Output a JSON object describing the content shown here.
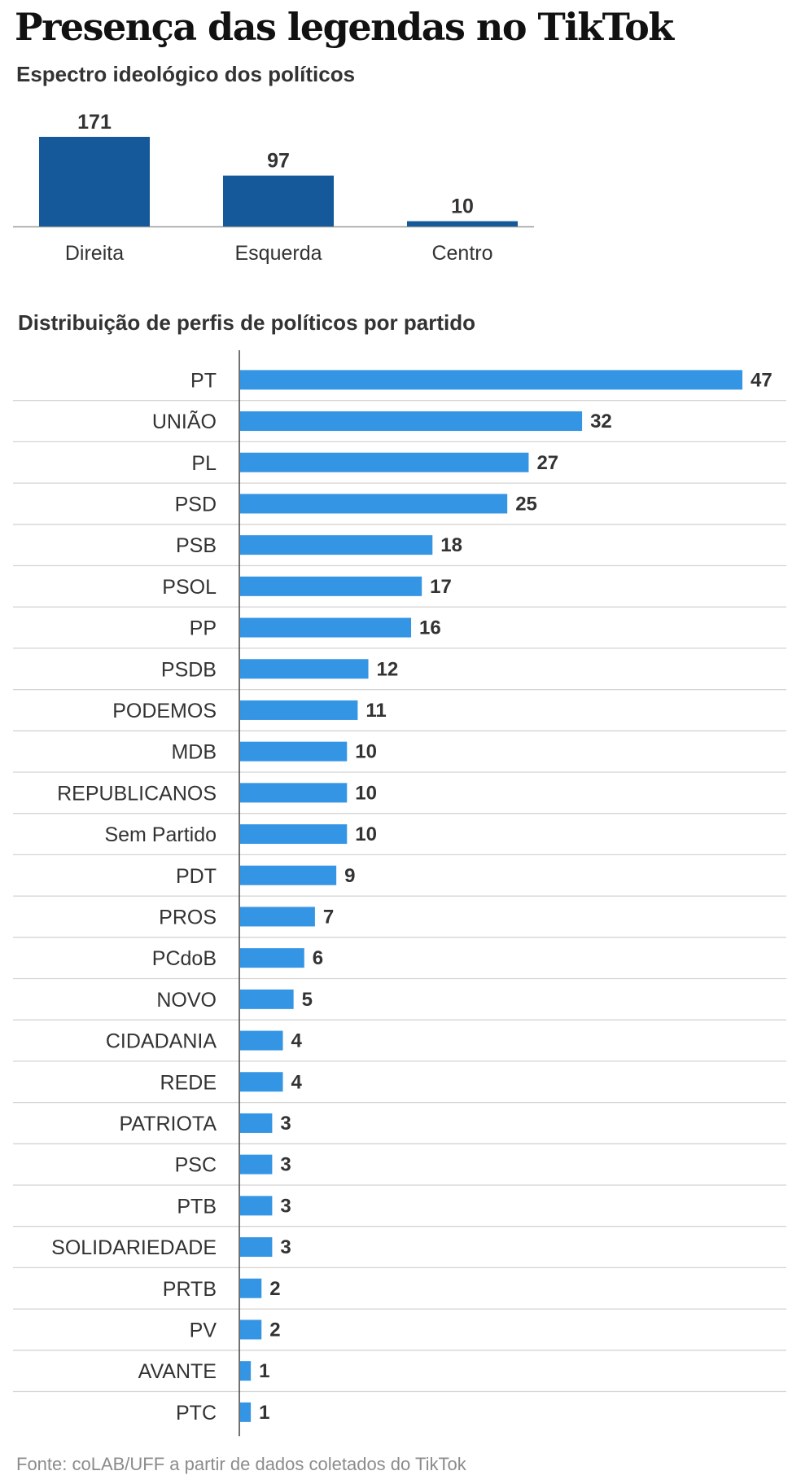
{
  "header": {
    "title": "Presença das legendas no TikTok"
  },
  "footer": {
    "source": "Fonte: coLAB/UFF a partir de dados coletados do TikTok"
  },
  "colors": {
    "spectrum_bar": "#15599a",
    "party_bar": "#3595e5",
    "grid": "#d4d4d4",
    "axis": "#444444",
    "label": "#333333",
    "value": "#333333"
  },
  "chart_data": [
    {
      "type": "bar",
      "title": "Espectro ideológico dos políticos",
      "categories": [
        "Direita",
        "Esquerda",
        "Centro"
      ],
      "values": [
        171,
        97,
        10
      ],
      "ylim": [
        0,
        171
      ],
      "grid": false,
      "legend": "none"
    },
    {
      "type": "bar",
      "orientation": "horizontal",
      "title": "Distribuição de perfis de políticos por partido",
      "categories": [
        "PT",
        "UNIÃO",
        "PL",
        "PSD",
        "PSB",
        "PSOL",
        "PP",
        "PSDB",
        "PODEMOS",
        "MDB",
        "REPUBLICANOS",
        "Sem Partido",
        "PDT",
        "PROS",
        "PCdoB",
        "NOVO",
        "CIDADANIA",
        "REDE",
        "PATRIOTA",
        "PSC",
        "PTB",
        "SOLIDARIEDADE",
        "PRTB",
        "PV",
        "AVANTE",
        "PTC"
      ],
      "values": [
        47,
        32,
        27,
        25,
        18,
        17,
        16,
        12,
        11,
        10,
        10,
        10,
        9,
        7,
        6,
        5,
        4,
        4,
        3,
        3,
        3,
        3,
        2,
        2,
        1,
        1
      ],
      "xlim": [
        0,
        47
      ],
      "grid": true,
      "legend": "none"
    }
  ]
}
